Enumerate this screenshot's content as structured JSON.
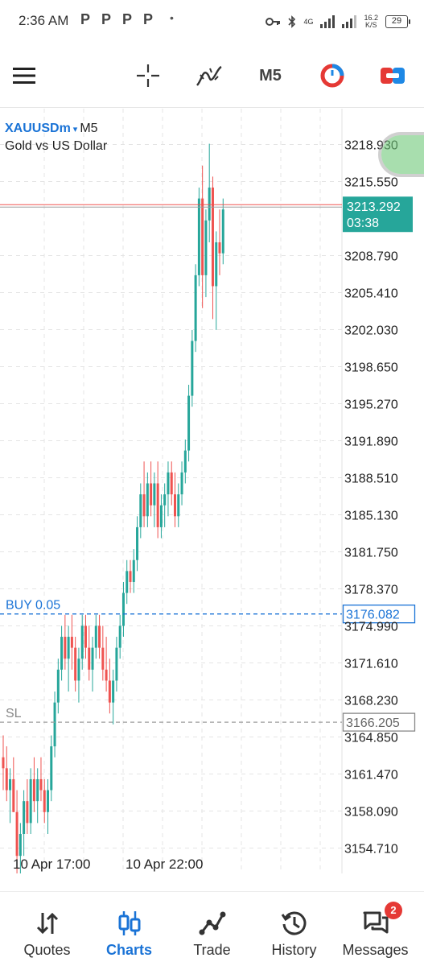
{
  "status_bar": {
    "time": "2:36 AM",
    "notification_icons": [
      "P",
      "P",
      "P",
      "P"
    ],
    "more_dot": "•",
    "network_type": "4G",
    "network_speed_value": "16.2",
    "network_speed_unit": "K/S",
    "battery_level": "29"
  },
  "toolbar": {
    "menu_icon": "hamburger-icon",
    "crosshair_icon": "crosshair-icon",
    "indicators_icon": "indicators-icon",
    "timeframe": "M5",
    "clock_icon": "one-click-trading-icon",
    "trade_icon": "trade-toggle-icon"
  },
  "chart": {
    "symbol": "XAUUSDm",
    "dropdown_arrow": "▾",
    "timeframe": "M5",
    "description": "Gold vs US Dollar",
    "current_price": "3213.292",
    "countdown": "03:38",
    "buy_label": "BUY 0.05",
    "buy_price": "3176.082",
    "sl_label": "SL",
    "sl_price": "3166.205",
    "colors": {
      "bull": "#26a69a",
      "bear": "#ef5350",
      "buy_line": "#1a73d6",
      "sl_line": "#9e9e9e",
      "price_tag": "#26a69a"
    }
  },
  "chart_data": {
    "type": "candlestick",
    "y_ticks": [
      "3218.930",
      "3215.550",
      "3213.292",
      "3208.790",
      "3205.410",
      "3202.030",
      "3198.650",
      "3195.270",
      "3191.890",
      "3188.510",
      "3185.130",
      "3181.750",
      "3178.370",
      "3174.990",
      "3171.610",
      "3168.230",
      "3164.850",
      "3161.470",
      "3158.090",
      "3154.710"
    ],
    "x_ticks": [
      "10 Apr 17:00",
      "10 Apr 22:00"
    ],
    "ylim": [
      3152.4,
      3222.2
    ],
    "grid": true,
    "series": [
      {
        "ohlc": [
          [
            3163,
            3165,
            3160,
            3162
          ],
          [
            3162,
            3164,
            3159,
            3160
          ],
          [
            3160,
            3162,
            3157,
            3161
          ],
          [
            3161,
            3163,
            3158,
            3158
          ],
          [
            3158,
            3160,
            3152,
            3154
          ],
          [
            3154,
            3157,
            3152,
            3156
          ],
          [
            3156,
            3160,
            3154,
            3159
          ],
          [
            3159,
            3161,
            3156,
            3157
          ],
          [
            3157,
            3162,
            3156,
            3161
          ],
          [
            3161,
            3163,
            3158,
            3159
          ],
          [
            3159,
            3162,
            3157,
            3161
          ],
          [
            3161,
            3163,
            3159,
            3160
          ],
          [
            3160,
            3161,
            3157,
            3158
          ],
          [
            3158,
            3161,
            3156,
            3160
          ],
          [
            3160,
            3165,
            3159,
            3164
          ],
          [
            3164,
            3169,
            3163,
            3168
          ],
          [
            3168,
            3172,
            3167,
            3171
          ],
          [
            3171,
            3175,
            3170,
            3174
          ],
          [
            3174,
            3176,
            3171,
            3172
          ],
          [
            3172,
            3175,
            3169,
            3174
          ],
          [
            3174,
            3176,
            3171,
            3173
          ],
          [
            3173,
            3174,
            3169,
            3170
          ],
          [
            3170,
            3173,
            3168,
            3172
          ],
          [
            3172,
            3176,
            3171,
            3175
          ],
          [
            3175,
            3176,
            3172,
            3173
          ],
          [
            3173,
            3175,
            3170,
            3171
          ],
          [
            3171,
            3174,
            3169,
            3173
          ],
          [
            3173,
            3176,
            3172,
            3175
          ],
          [
            3175,
            3176,
            3172,
            3173
          ],
          [
            3173,
            3175,
            3170,
            3171
          ],
          [
            3171,
            3174,
            3169,
            3170
          ],
          [
            3170,
            3172,
            3167,
            3168
          ],
          [
            3168,
            3171,
            3166,
            3170
          ],
          [
            3170,
            3174,
            3169,
            3173
          ],
          [
            3173,
            3176,
            3172,
            3175
          ],
          [
            3175,
            3179,
            3174,
            3178
          ],
          [
            3178,
            3181,
            3177,
            3180
          ],
          [
            3180,
            3181,
            3178,
            3179
          ],
          [
            3179,
            3182,
            3178,
            3181
          ],
          [
            3181,
            3185,
            3180,
            3184
          ],
          [
            3184,
            3188,
            3183,
            3187
          ],
          [
            3187,
            3190,
            3184,
            3185
          ],
          [
            3185,
            3189,
            3184,
            3188
          ],
          [
            3188,
            3190,
            3185,
            3186
          ],
          [
            3186,
            3189,
            3184,
            3188
          ],
          [
            3188,
            3190,
            3183,
            3184
          ],
          [
            3184,
            3187,
            3183,
            3186
          ],
          [
            3186,
            3188,
            3184,
            3187
          ],
          [
            3187,
            3190,
            3185,
            3189
          ],
          [
            3189,
            3190,
            3186,
            3187
          ],
          [
            3187,
            3189,
            3184,
            3185
          ],
          [
            3185,
            3188,
            3184,
            3187
          ],
          [
            3187,
            3190,
            3186,
            3189
          ],
          [
            3189,
            3192,
            3188,
            3191
          ],
          [
            3191,
            3197,
            3190,
            3196
          ],
          [
            3196,
            3202,
            3195,
            3201
          ],
          [
            3201,
            3208,
            3200,
            3207
          ],
          [
            3207,
            3215,
            3206,
            3214
          ],
          [
            3214,
            3217,
            3204,
            3207
          ],
          [
            3207,
            3213,
            3205,
            3212
          ],
          [
            3212,
            3219,
            3210,
            3215
          ],
          [
            3215,
            3216,
            3203,
            3206
          ],
          [
            3206,
            3211,
            3202,
            3210
          ],
          [
            3210,
            3213,
            3207,
            3209
          ],
          [
            3209,
            3214,
            3208,
            3213
          ]
        ]
      }
    ]
  },
  "bottom_nav": {
    "items": [
      {
        "label": "Quotes",
        "icon": "quotes-icon"
      },
      {
        "label": "Charts",
        "icon": "charts-icon"
      },
      {
        "label": "Trade",
        "icon": "trade-icon"
      },
      {
        "label": "History",
        "icon": "history-icon"
      },
      {
        "label": "Messages",
        "icon": "messages-icon"
      }
    ],
    "messages_badge": "2",
    "active": "Charts"
  }
}
